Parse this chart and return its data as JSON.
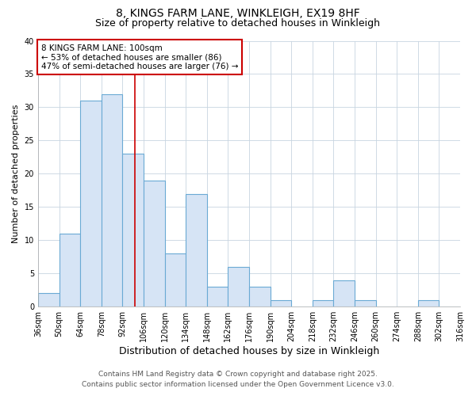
{
  "title": "8, KINGS FARM LANE, WINKLEIGH, EX19 8HF",
  "subtitle": "Size of property relative to detached houses in Winkleigh",
  "xlabel": "Distribution of detached houses by size in Winkleigh",
  "ylabel": "Number of detached properties",
  "bin_edges": [
    36,
    50,
    64,
    78,
    92,
    106,
    120,
    134,
    148,
    162,
    176,
    190,
    204,
    218,
    232,
    246,
    260,
    274,
    288,
    302,
    316
  ],
  "bar_heights": [
    2,
    11,
    31,
    32,
    23,
    19,
    8,
    17,
    3,
    6,
    3,
    1,
    0,
    1,
    4,
    1,
    0,
    0,
    1,
    0
  ],
  "bar_color": "#d6e4f5",
  "bar_edgecolor": "#6aaad4",
  "vline_x": 100,
  "vline_color": "#cc0000",
  "annotation_text": "8 KINGS FARM LANE: 100sqm\n← 53% of detached houses are smaller (86)\n47% of semi-detached houses are larger (76) →",
  "annotation_box_edgecolor": "#cc0000",
  "annotation_box_facecolor": "#ffffff",
  "ylim": [
    0,
    40
  ],
  "grid_color": "#c8d4e0",
  "bg_color": "#ffffff",
  "plot_bg_color": "#ffffff",
  "footer_line1": "Contains HM Land Registry data © Crown copyright and database right 2025.",
  "footer_line2": "Contains public sector information licensed under the Open Government Licence v3.0.",
  "title_fontsize": 10,
  "subtitle_fontsize": 9,
  "tick_label_fontsize": 7,
  "ylabel_fontsize": 8,
  "xlabel_fontsize": 9,
  "footer_fontsize": 6.5
}
